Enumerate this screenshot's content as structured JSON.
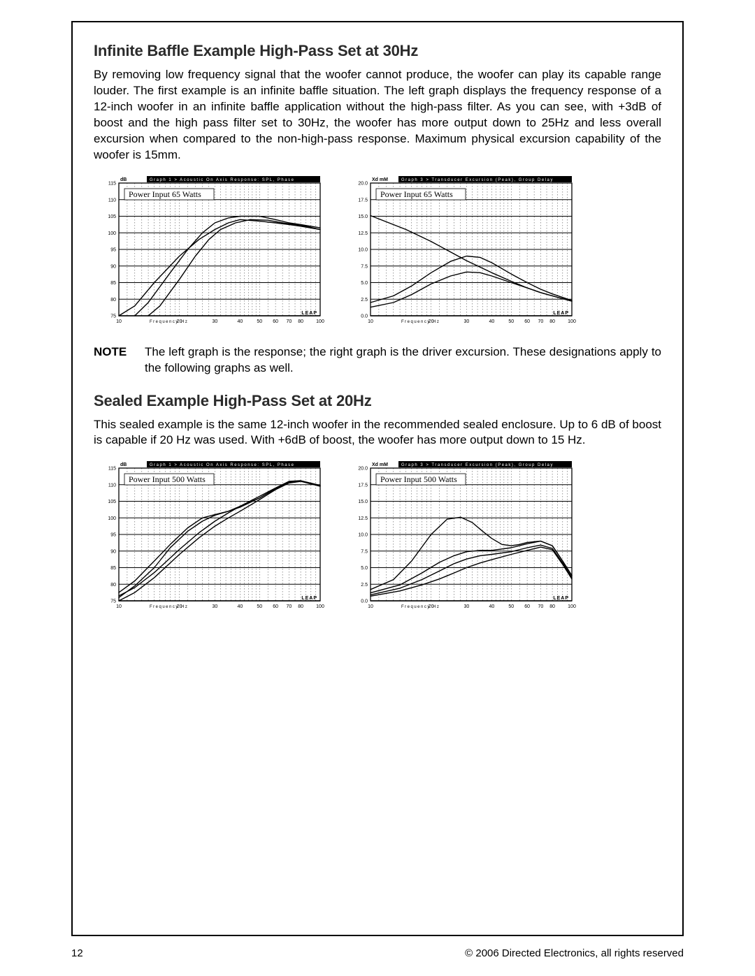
{
  "section1": {
    "heading": "Infinite Baffle Example High-Pass Set at 30Hz",
    "body": "By removing low frequency signal that the woofer cannot produce, the woofer can play its capable range louder. The first example is an infinite baffle situation. The left graph displays the frequency response of a 12-inch woofer in an infinite baffle application without the high-pass filter. As you can see, with +3dB of boost and the high pass filter set to 30Hz, the woofer has more output down to 25Hz and less overall excursion when compared to the non-high-pass response. Maximum physical excursion capability of the woofer is 15mm."
  },
  "note": {
    "label": "NOTE",
    "text": "The left graph is the response; the right graph is the driver excursion. These designations apply to the following graphs as well."
  },
  "section2": {
    "heading": "Sealed Example High-Pass Set at 20Hz",
    "body": "This sealed example is the same 12-inch woofer in the recommended sealed enclosure. Up to 6 dB of boost is capable if 20 Hz was used. With +6dB of boost, the woofer has more output down to 15 Hz."
  },
  "chart_common": {
    "x_label": "Frequency  Hz",
    "x_ticks": [
      "10",
      "20",
      "30",
      "40",
      "50",
      "60",
      "70",
      "80",
      "100"
    ],
    "x_values": [
      10,
      20,
      30,
      40,
      50,
      60,
      70,
      80,
      100
    ],
    "line_color": "#000000",
    "grid_color": "#000000",
    "frame_color": "#000000",
    "bg_color": "#ffffff",
    "title_bar_bg": "#000000",
    "title_bar_fg": "#ffffff"
  },
  "chart1L": {
    "title": "Graph 1 > Acoustic On Axis Response: SPL, Phase",
    "y_unit": "dB",
    "caption": "Power Input 65 Watts",
    "ylim": [
      75,
      115
    ],
    "y_ticks": [
      75,
      80,
      85,
      90,
      95,
      100,
      105,
      110,
      115
    ],
    "series": [
      {
        "name": "no-hp",
        "pts": [
          [
            10,
            75
          ],
          [
            12,
            78
          ],
          [
            15,
            85
          ],
          [
            20,
            93
          ],
          [
            25,
            98
          ],
          [
            30,
            101
          ],
          [
            35,
            103
          ],
          [
            40,
            104
          ],
          [
            50,
            103.5
          ],
          [
            60,
            103
          ],
          [
            70,
            102.5
          ],
          [
            80,
            102
          ],
          [
            100,
            101
          ]
        ]
      },
      {
        "name": "hp-boost",
        "pts": [
          [
            12,
            75
          ],
          [
            14,
            79
          ],
          [
            18,
            88
          ],
          [
            22,
            95
          ],
          [
            26,
            100
          ],
          [
            30,
            103
          ],
          [
            35,
            104.5
          ],
          [
            40,
            105
          ],
          [
            50,
            105
          ],
          [
            60,
            104
          ],
          [
            70,
            103
          ],
          [
            80,
            102.5
          ],
          [
            100,
            101.5
          ]
        ]
      },
      {
        "name": "hp",
        "pts": [
          [
            14,
            75
          ],
          [
            16,
            78
          ],
          [
            20,
            86
          ],
          [
            24,
            93
          ],
          [
            28,
            98
          ],
          [
            32,
            101
          ],
          [
            38,
            103
          ],
          [
            45,
            104
          ],
          [
            55,
            103.8
          ],
          [
            65,
            103
          ],
          [
            75,
            102.5
          ],
          [
            85,
            102
          ],
          [
            100,
            101
          ]
        ]
      }
    ]
  },
  "chart1R": {
    "title": "Graph 3 > Transducer Excursion (Peak), Group Delay",
    "y_unit": "Xd mM",
    "caption": "Power Input 65 Watts",
    "ylim": [
      0.0,
      20.0
    ],
    "y_ticks": [
      0.0,
      2.5,
      5.0,
      7.5,
      10.0,
      12.5,
      15.0,
      17.5,
      20.0
    ],
    "series": [
      {
        "name": "no-hp",
        "pts": [
          [
            10,
            15.1
          ],
          [
            15,
            13.0
          ],
          [
            20,
            11.2
          ],
          [
            25,
            9.6
          ],
          [
            30,
            8.3
          ],
          [
            40,
            6.5
          ],
          [
            50,
            5.2
          ],
          [
            60,
            4.2
          ],
          [
            70,
            3.5
          ],
          [
            80,
            3.0
          ],
          [
            100,
            2.2
          ]
        ]
      },
      {
        "name": "hp-boost",
        "pts": [
          [
            10,
            2.0
          ],
          [
            13,
            3.0
          ],
          [
            16,
            4.5
          ],
          [
            20,
            6.5
          ],
          [
            25,
            8.2
          ],
          [
            30,
            9.0
          ],
          [
            35,
            8.8
          ],
          [
            40,
            8.0
          ],
          [
            50,
            6.3
          ],
          [
            60,
            5.0
          ],
          [
            70,
            4.0
          ],
          [
            80,
            3.3
          ],
          [
            100,
            2.3
          ]
        ]
      },
      {
        "name": "hp",
        "pts": [
          [
            10,
            1.3
          ],
          [
            13,
            2.0
          ],
          [
            16,
            3.2
          ],
          [
            20,
            4.8
          ],
          [
            25,
            6.0
          ],
          [
            30,
            6.6
          ],
          [
            35,
            6.5
          ],
          [
            40,
            6.0
          ],
          [
            50,
            5.0
          ],
          [
            60,
            4.2
          ],
          [
            70,
            3.5
          ],
          [
            80,
            3.0
          ],
          [
            100,
            2.2
          ]
        ]
      }
    ]
  },
  "chart2L": {
    "title": "Graph 1 > Acoustic On Axis Response: SPL, Phase",
    "y_unit": "dB",
    "caption": "Power Input 500 Watts",
    "ylim": [
      75,
      115
    ],
    "y_ticks": [
      75,
      80,
      85,
      90,
      95,
      100,
      105,
      110,
      115
    ],
    "series": [
      {
        "name": "s1",
        "pts": [
          [
            10,
            75
          ],
          [
            12,
            77.5
          ],
          [
            15,
            82
          ],
          [
            20,
            89
          ],
          [
            25,
            94
          ],
          [
            30,
            97.5
          ],
          [
            35,
            100
          ],
          [
            40,
            102
          ],
          [
            50,
            105.5
          ],
          [
            60,
            108.5
          ],
          [
            70,
            110.5
          ],
          [
            80,
            111
          ],
          [
            100,
            109.5
          ]
        ]
      },
      {
        "name": "s2",
        "pts": [
          [
            10,
            76.5
          ],
          [
            12,
            79
          ],
          [
            15,
            83.5
          ],
          [
            20,
            90.5
          ],
          [
            25,
            95.5
          ],
          [
            30,
            99
          ],
          [
            35,
            101.5
          ],
          [
            40,
            103.5
          ],
          [
            50,
            106.5
          ],
          [
            60,
            109
          ],
          [
            70,
            111
          ],
          [
            80,
            111.2
          ],
          [
            100,
            109.8
          ]
        ]
      },
      {
        "name": "s3",
        "pts": [
          [
            10,
            77.5
          ],
          [
            12,
            81
          ],
          [
            15,
            87
          ],
          [
            18,
            92
          ],
          [
            22,
            97
          ],
          [
            26,
            100
          ],
          [
            30,
            101
          ],
          [
            35,
            102
          ],
          [
            40,
            103.5
          ],
          [
            50,
            106
          ],
          [
            60,
            108.8
          ],
          [
            70,
            110.8
          ],
          [
            80,
            111.1
          ],
          [
            100,
            109.7
          ]
        ]
      },
      {
        "name": "s4",
        "pts": [
          [
            10,
            76
          ],
          [
            12,
            79.5
          ],
          [
            15,
            85
          ],
          [
            18,
            91
          ],
          [
            22,
            96
          ],
          [
            26,
            99
          ],
          [
            30,
            100.8
          ],
          [
            35,
            102
          ],
          [
            40,
            103.2
          ],
          [
            50,
            106
          ],
          [
            60,
            108.8
          ],
          [
            70,
            110.8
          ],
          [
            80,
            111.1
          ],
          [
            100,
            109.7
          ]
        ]
      }
    ]
  },
  "chart2R": {
    "title": "Graph 3 > Transducer Excursion (Peak), Group Delay",
    "y_unit": "Xd mM",
    "caption": "Power Input 500 Watts",
    "ylim": [
      0.0,
      20.0
    ],
    "y_ticks": [
      0.0,
      2.5,
      5.0,
      7.5,
      10.0,
      12.5,
      15.0,
      17.5,
      20.0
    ],
    "series": [
      {
        "name": "s1",
        "pts": [
          [
            10,
            1.7
          ],
          [
            13,
            3.2
          ],
          [
            16,
            6.0
          ],
          [
            20,
            10.0
          ],
          [
            24,
            12.3
          ],
          [
            28,
            12.6
          ],
          [
            32,
            11.8
          ],
          [
            36,
            10.5
          ],
          [
            40,
            9.4
          ],
          [
            45,
            8.5
          ],
          [
            50,
            8.3
          ],
          [
            55,
            8.5
          ],
          [
            60,
            8.8
          ],
          [
            70,
            9.0
          ],
          [
            80,
            8.3
          ],
          [
            90,
            6.0
          ],
          [
            100,
            3.8
          ]
        ]
      },
      {
        "name": "s2",
        "pts": [
          [
            10,
            1.2
          ],
          [
            14,
            2.4
          ],
          [
            18,
            4.2
          ],
          [
            22,
            5.8
          ],
          [
            26,
            6.8
          ],
          [
            30,
            7.4
          ],
          [
            35,
            7.6
          ],
          [
            40,
            7.6
          ],
          [
            50,
            8.0
          ],
          [
            60,
            8.6
          ],
          [
            70,
            9.0
          ],
          [
            80,
            8.3
          ],
          [
            90,
            6.0
          ],
          [
            100,
            3.8
          ]
        ]
      },
      {
        "name": "s3",
        "pts": [
          [
            10,
            0.9
          ],
          [
            14,
            1.9
          ],
          [
            18,
            3.2
          ],
          [
            22,
            4.5
          ],
          [
            26,
            5.6
          ],
          [
            30,
            6.3
          ],
          [
            35,
            6.8
          ],
          [
            40,
            7.0
          ],
          [
            50,
            7.4
          ],
          [
            60,
            8.0
          ],
          [
            70,
            8.4
          ],
          [
            80,
            7.9
          ],
          [
            90,
            5.7
          ],
          [
            100,
            3.5
          ]
        ]
      },
      {
        "name": "s4",
        "pts": [
          [
            10,
            0.7
          ],
          [
            14,
            1.5
          ],
          [
            18,
            2.4
          ],
          [
            22,
            3.3
          ],
          [
            26,
            4.2
          ],
          [
            30,
            5.0
          ],
          [
            35,
            5.7
          ],
          [
            40,
            6.2
          ],
          [
            50,
            7.0
          ],
          [
            60,
            7.6
          ],
          [
            70,
            8.1
          ],
          [
            80,
            7.7
          ],
          [
            90,
            5.5
          ],
          [
            100,
            3.3
          ]
        ]
      }
    ]
  },
  "footer": {
    "page": "12",
    "copyright": "© 2006 Directed Electronics, all rights reserved"
  }
}
